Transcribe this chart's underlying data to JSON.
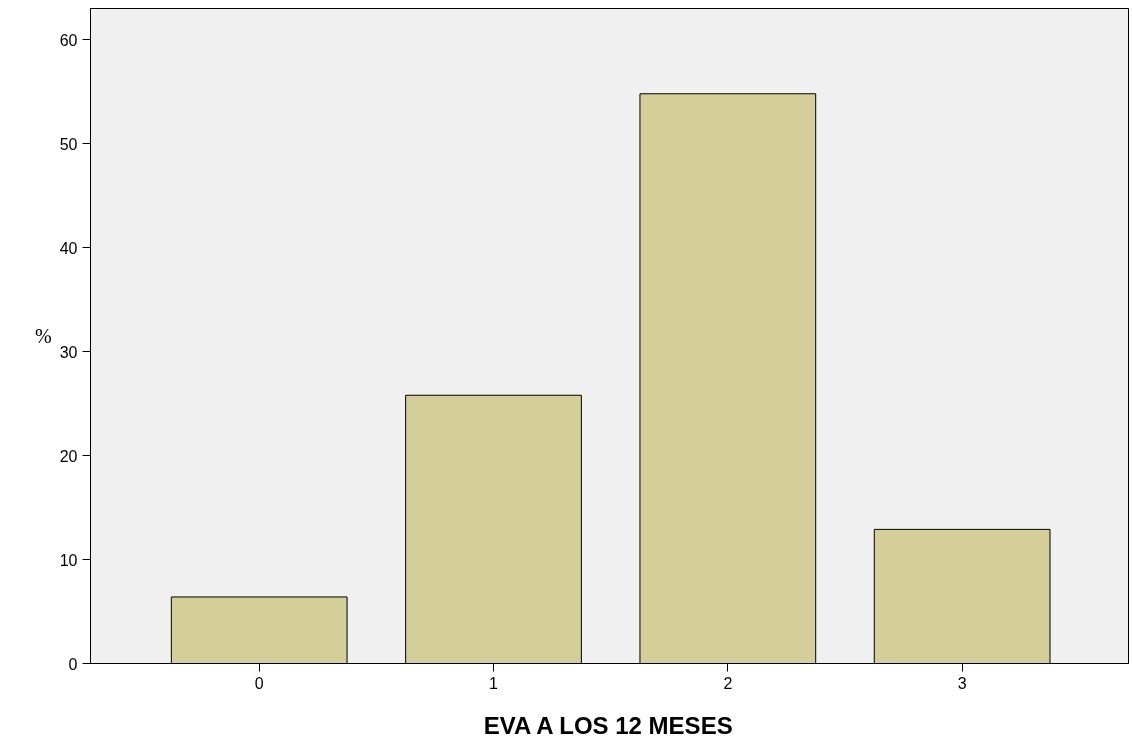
{
  "chart_data": {
    "type": "bar",
    "xlabel": "EVA A LOS 12 MESES",
    "ylabel": "%",
    "categories": [
      "0",
      "1",
      "2",
      "3"
    ],
    "values": [
      6.4,
      25.8,
      54.8,
      12.9
    ],
    "color": "#d4cf98",
    "ylim": [
      0,
      63
    ],
    "yticks": [
      0,
      10,
      20,
      30,
      40,
      50,
      60
    ],
    "grid": false
  }
}
